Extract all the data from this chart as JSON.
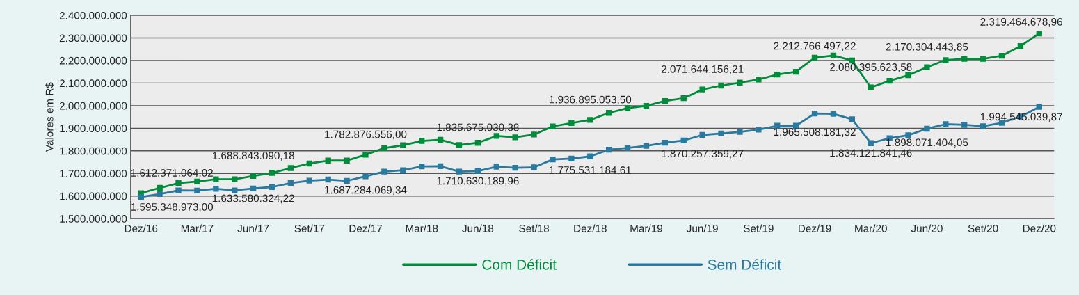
{
  "chart_data": {
    "type": "line",
    "ylabel": "Valores em R$",
    "categories": [
      "Dez/16",
      null,
      null,
      "Mar/17",
      null,
      null,
      "Jun/17",
      null,
      null,
      "Set/17",
      null,
      null,
      "Dez/17",
      null,
      null,
      "Mar/18",
      null,
      null,
      "Jun/18",
      null,
      null,
      "Set/18",
      null,
      null,
      "Dez/18",
      null,
      null,
      "Mar/19",
      null,
      null,
      "Jun/19",
      null,
      null,
      "Set/19",
      null,
      null,
      "Dez/19",
      null,
      null,
      "Mar/20",
      null,
      null,
      "Jun/20",
      null,
      null,
      "Set/20",
      null,
      null,
      "Dez/20"
    ],
    "ylim": [
      1500000000,
      2400000000
    ],
    "yticks": [
      {
        "value": 1500000000,
        "label": "1.500.000.000"
      },
      {
        "value": 1600000000,
        "label": "1.600.000.000"
      },
      {
        "value": 1700000000,
        "label": "1.700.000.000"
      },
      {
        "value": 1800000000,
        "label": "1.800.000.000"
      },
      {
        "value": 1900000000,
        "label": "1.900.000.000"
      },
      {
        "value": 2000000000,
        "label": "2.000.000.000"
      },
      {
        "value": 2100000000,
        "label": "2.100.000.000"
      },
      {
        "value": 2200000000,
        "label": "2.200.000.000"
      },
      {
        "value": 2300000000,
        "label": "2.300.000.000"
      },
      {
        "value": 2400000000,
        "label": "2.400.000.000"
      }
    ],
    "grid": "y",
    "legend": "bottom",
    "marker": "square",
    "line_style": "solid",
    "series": [
      {
        "name": "Com Déficit",
        "color": "#008c3a",
        "values": [
          1612371064.02,
          1636000000,
          1657000000,
          1664000000,
          1674000000,
          1674000000,
          1688843090.18,
          1702000000,
          1724000000,
          1744000000,
          1757000000,
          1757000000,
          1782876556.0,
          1812000000,
          1825000000,
          1844000000,
          1849000000,
          1826000000,
          1835675030.38,
          1866000000,
          1860000000,
          1872000000,
          1908000000,
          1923000000,
          1936895053.5,
          1968000000,
          1989000000,
          1999000000,
          2021000000,
          2033000000,
          2071644156.21,
          2089000000,
          2102000000,
          2116000000,
          2138000000,
          2150000000,
          2212766497.22,
          2222000000,
          2200000000,
          2080395623.58,
          2110000000,
          2135000000,
          2170304443.85,
          2202000000,
          2207000000,
          2207000000,
          2221000000,
          2264000000,
          2319464678.96
        ],
        "value_labels": [
          "1.612.371.064,02",
          null,
          null,
          null,
          null,
          null,
          "1.688.843.090,18",
          null,
          null,
          null,
          null,
          null,
          "1.782.876.556,00",
          null,
          null,
          null,
          null,
          null,
          "1.835.675.030,38",
          null,
          null,
          null,
          null,
          null,
          "1.936.895.053,50",
          null,
          null,
          null,
          null,
          null,
          "2.071.644.156,21",
          null,
          null,
          null,
          null,
          null,
          "2.212.766.497,22",
          null,
          null,
          "2.080.395.623,58",
          null,
          null,
          "2.170.304.443,85",
          null,
          null,
          null,
          null,
          null,
          "2.319.464.678,96"
        ]
      },
      {
        "name": "Sem Déficit",
        "color": "#2a7aa0",
        "values": [
          1595348973.0,
          1609000000,
          1625000000,
          1624000000,
          1632000000,
          1625000000,
          1633580324.22,
          1640000000,
          1657000000,
          1668000000,
          1673000000,
          1667000000,
          1687284069.34,
          1708000000,
          1714000000,
          1731000000,
          1732000000,
          1708000000,
          1710630189.96,
          1730000000,
          1725000000,
          1727000000,
          1762000000,
          1766000000,
          1775531184.61,
          1805000000,
          1813000000,
          1822000000,
          1836000000,
          1846000000,
          1870257359.27,
          1877000000,
          1884000000,
          1894000000,
          1911000000,
          1911000000,
          1965508181.32,
          1964000000,
          1940000000,
          1834121841.46,
          1856000000,
          1869000000,
          1898071404.05,
          1918000000,
          1915000000,
          1909000000,
          1924000000,
          1952000000,
          1994545039.87
        ],
        "value_labels": [
          "1.595.348.973,00",
          null,
          null,
          null,
          null,
          null,
          "1.633.580.324,22",
          null,
          null,
          null,
          null,
          null,
          "1.687.284.069,34",
          null,
          null,
          null,
          null,
          null,
          "1.710.630.189,96",
          null,
          null,
          null,
          null,
          null,
          "1.775.531.184,61",
          null,
          null,
          null,
          null,
          null,
          "1.870.257.359,27",
          null,
          null,
          null,
          null,
          null,
          "1.965.508.181,32",
          null,
          null,
          "1.834.121.841,46",
          null,
          null,
          "1.898.071.404,05",
          null,
          null,
          null,
          null,
          null,
          "1.994.545.039,87"
        ]
      }
    ]
  }
}
